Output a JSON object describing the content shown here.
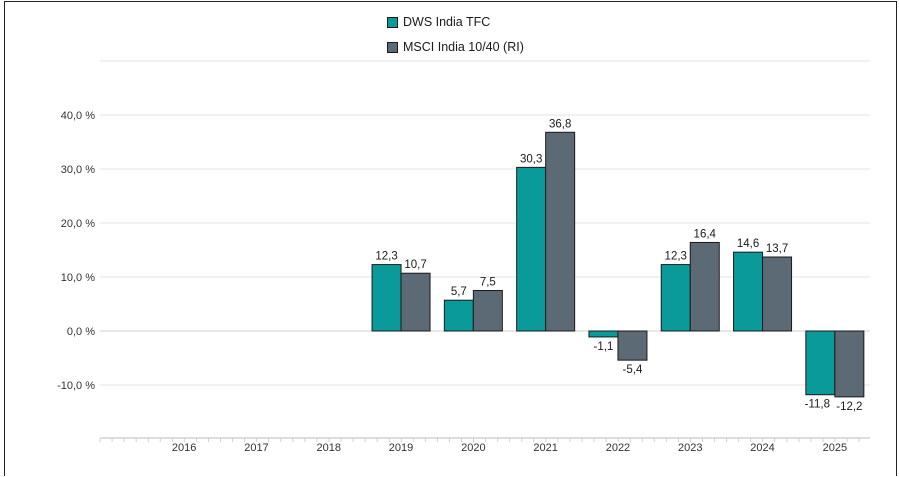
{
  "legend": {
    "items": [
      {
        "label": "DWS India TFC",
        "color": "#0b9a9a"
      },
      {
        "label": "MSCI India 10/40 (RI)",
        "color": "#5c6a76"
      }
    ]
  },
  "chart_data": {
    "type": "bar",
    "title": "",
    "xlabel": "",
    "ylabel": "",
    "categories": [
      "2016",
      "2017",
      "2018",
      "2019",
      "2020",
      "2021",
      "2022",
      "2023",
      "2024",
      "2025"
    ],
    "series": [
      {
        "name": "DWS India TFC",
        "color": "#0b9a9a",
        "values": [
          null,
          null,
          null,
          12.3,
          5.7,
          30.3,
          -1.1,
          12.3,
          14.6,
          -11.8
        ]
      },
      {
        "name": "MSCI India 10/40 (RI)",
        "color": "#5c6a76",
        "values": [
          null,
          null,
          null,
          10.7,
          7.5,
          36.8,
          -5.4,
          16.4,
          13.7,
          -12.2
        ]
      }
    ],
    "value_labels": {
      "DWS India TFC": [
        null,
        null,
        null,
        "12,3",
        "5,7",
        "30,3",
        "-1,1",
        "12,3",
        "14,6",
        "-11,8"
      ],
      "MSCI India 10/40 (RI)": [
        null,
        null,
        null,
        "10,7",
        "7,5",
        "36,8",
        "-5,4",
        "16,4",
        "13,7",
        "-12,2"
      ]
    },
    "yticks": [
      {
        "value": 40,
        "label": "40,0 %"
      },
      {
        "value": 30,
        "label": "30,0 %"
      },
      {
        "value": 20,
        "label": "20,0 %"
      },
      {
        "value": 10,
        "label": "10,0 %"
      },
      {
        "value": 0,
        "label": "0,0 %"
      },
      {
        "value": -10,
        "label": "-10,0 %"
      }
    ],
    "ylim": [
      -20,
      50
    ],
    "grid": true,
    "legend_position": "top-center"
  }
}
